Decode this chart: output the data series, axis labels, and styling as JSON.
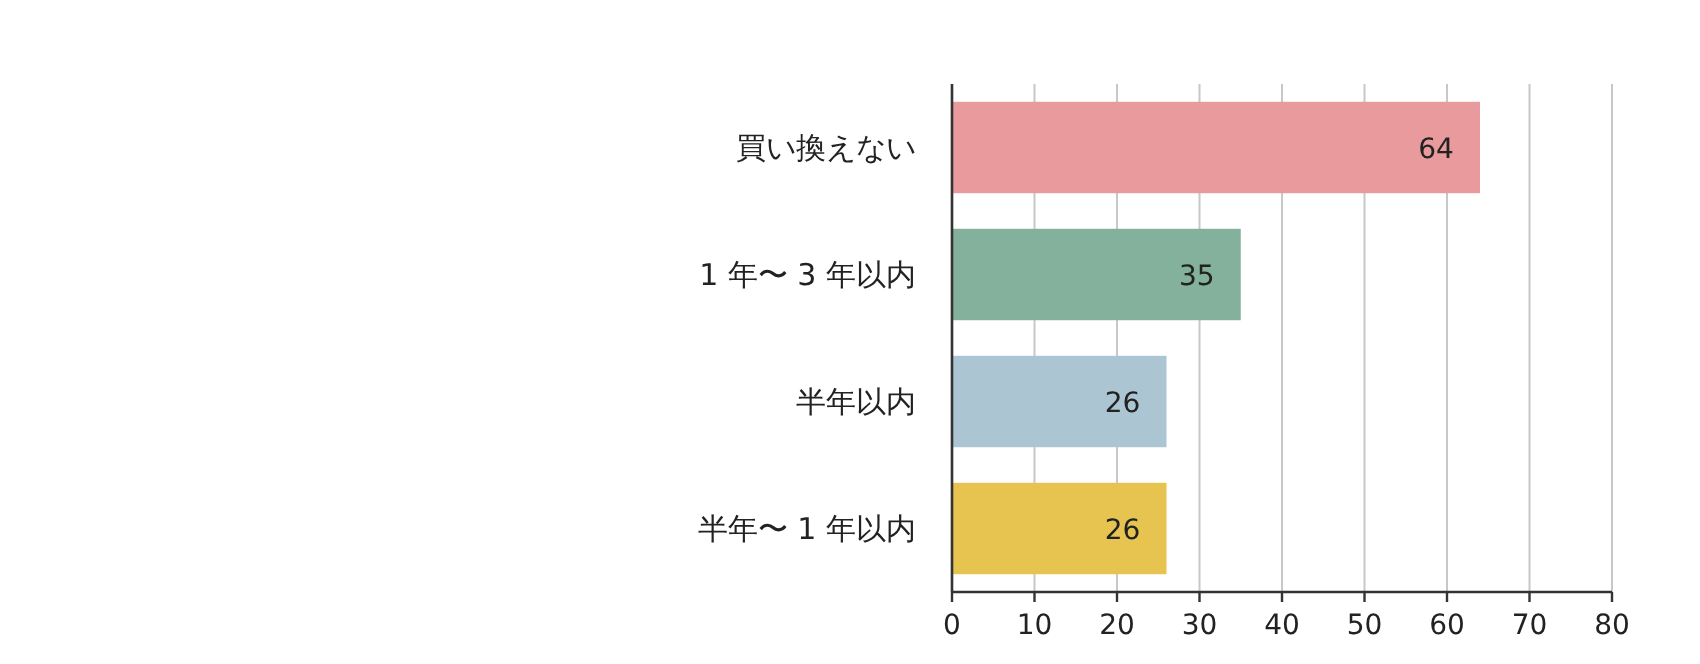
{
  "chart_data": {
    "type": "bar",
    "orientation": "horizontal",
    "categories": [
      "買い換えない",
      "1 年〜 3 年以内",
      "半年以内",
      "半年〜 1 年以内"
    ],
    "values": [
      64,
      35,
      26,
      26
    ],
    "colors": [
      "#e99a9d",
      "#84b19b",
      "#abc5d2",
      "#e6c44f"
    ],
    "xlim": [
      0,
      80
    ],
    "xticks": [
      0,
      10,
      20,
      30,
      40,
      50,
      60,
      70,
      80
    ],
    "grid": "x",
    "data_labels": true
  }
}
